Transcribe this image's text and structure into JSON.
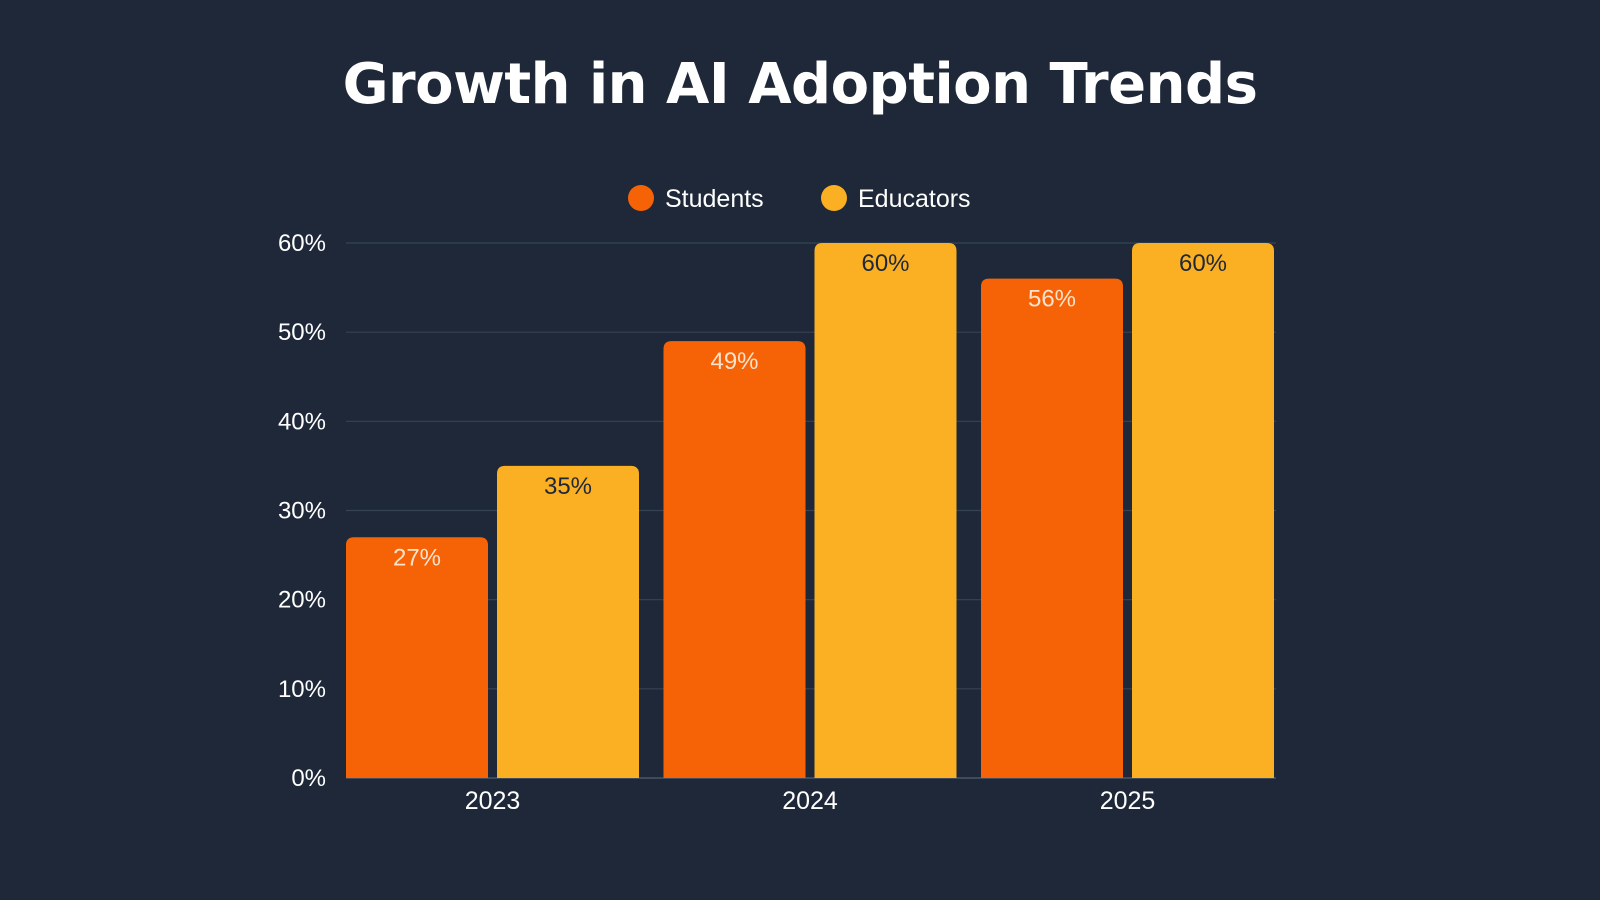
{
  "chart_data": {
    "type": "bar",
    "title": "Growth in AI Adoption Trends",
    "categories": [
      "2023",
      "2024",
      "2025"
    ],
    "series": [
      {
        "name": "Students",
        "color": "#f66307",
        "label_color": "#fde2cc",
        "values": [
          27,
          49,
          56
        ],
        "labels": [
          "27%",
          "49%",
          "56%"
        ]
      },
      {
        "name": "Educators",
        "color": "#fbb024",
        "label_color": "#1e2838",
        "values": [
          35,
          60,
          60
        ],
        "labels": [
          "35%",
          "60%",
          "60%"
        ]
      }
    ],
    "ylim": [
      0,
      60
    ],
    "yticks": [
      0,
      10,
      20,
      30,
      40,
      50,
      60
    ],
    "ytick_labels": [
      "0%",
      "10%",
      "20%",
      "30%",
      "40%",
      "50%",
      "60%"
    ],
    "xlabel": "",
    "ylabel": "",
    "legend": "top-center",
    "grid": true
  },
  "colors": {
    "background": "#1e2838",
    "text": "#ffffff",
    "grid": "#364354"
  }
}
